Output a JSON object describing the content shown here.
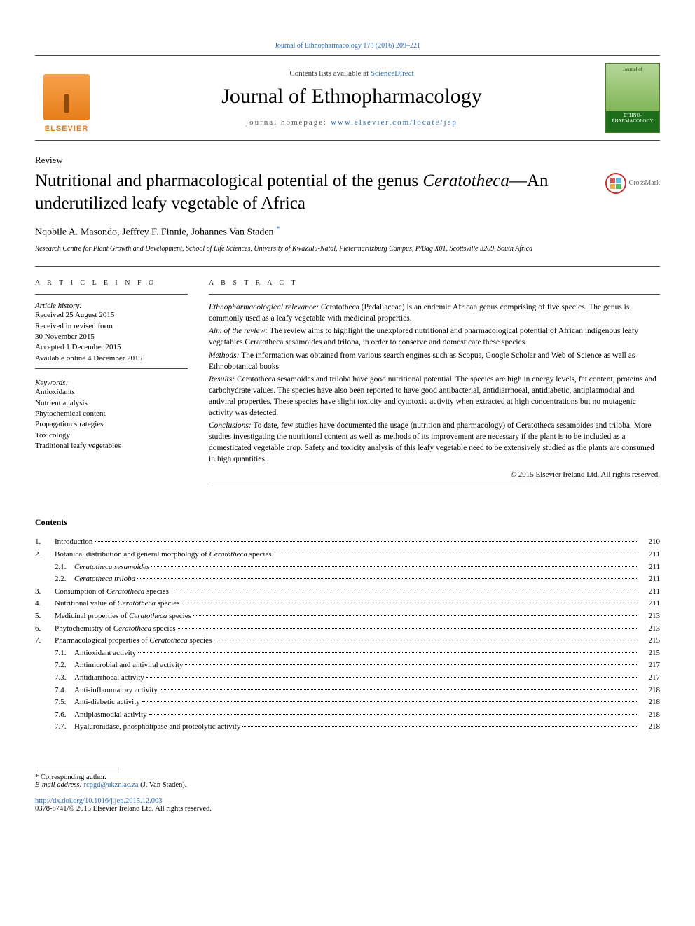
{
  "running_header": {
    "journal_link_text": "Journal of Ethnopharmacology 178 (2016) 209–221",
    "journal_link_color": "#2a6bb8"
  },
  "masthead": {
    "publisher_name": "ELSEVIER",
    "publisher_color": "#e67d1a",
    "contents_prefix": "Contents lists available at ",
    "contents_link": "ScienceDirect",
    "journal_title": "Journal of Ethnopharmacology",
    "homepage_prefix": "journal homepage: ",
    "homepage_link": "www.elsevier.com/locate/jep",
    "cover_top": "Journal of",
    "cover_bottom": "ETHNO-\nPHARMACOLOGY"
  },
  "article": {
    "type": "Review",
    "title_pre": "Nutritional and pharmacological potential of the genus ",
    "title_ital": "Ceratotheca",
    "title_post": "—An underutilized leafy vegetable of Africa",
    "crossmark_label": "CrossMark",
    "authors_text": "Nqobile A. Masondo, Jeffrey F. Finnie, Johannes Van Staden",
    "corr_symbol": "*",
    "affiliation": "Research Centre for Plant Growth and Development, School of Life Sciences, University of KwaZulu-Natal, Pietermaritzburg Campus, P/Bag X01, Scottsville 3209, South Africa"
  },
  "article_info": {
    "heading": "a r t i c l e  i n f o",
    "history_label": "Article history:",
    "history": [
      "Received 25 August 2015",
      "Received in revised form",
      "30 November 2015",
      "Accepted 1 December 2015",
      "Available online 4 December 2015"
    ],
    "keywords_label": "Keywords:",
    "keywords": [
      "Antioxidants",
      "Nutrient analysis",
      "Phytochemical content",
      "Propagation strategies",
      "Toxicology",
      "Traditional leafy vegetables"
    ]
  },
  "abstract": {
    "heading": "a b s t r a c t",
    "sections": [
      {
        "label": "Ethnopharmacological relevance:",
        "text": " Ceratotheca (Pedaliaceae) is an endemic African genus comprising of five species. The genus is commonly used as a leafy vegetable with medicinal properties."
      },
      {
        "label": "Aim of the review:",
        "text": " The review aims to highlight the unexplored nutritional and pharmacological potential of African indigenous leafy vegetables Ceratotheca sesamoides and triloba, in order to conserve and domesticate these species."
      },
      {
        "label": "Methods:",
        "text": " The information was obtained from various search engines such as Scopus, Google Scholar and Web of Science as well as Ethnobotanical books."
      },
      {
        "label": "Results:",
        "text": " Ceratotheca sesamoides and triloba have good nutritional potential. The species are high in energy levels, fat content, proteins and carbohydrate values. The species have also been reported to have good antibacterial, antidiarrhoeal, antidiabetic, antiplasmodial and antiviral properties. These species have slight toxicity and cytotoxic activity when extracted at high concentrations but no mutagenic activity was detected."
      },
      {
        "label": "Conclusions:",
        "text": " To date, few studies have documented the usage (nutrition and pharmacology) of Ceratotheca sesamoides and triloba. More studies investigating the nutritional content as well as methods of its improvement are necessary if the plant is to be included as a domesticated vegetable crop. Safety and toxicity analysis of this leafy vegetable need to be extensively studied as the plants are consumed in high quantities."
      }
    ],
    "copyright": "© 2015 Elsevier Ireland Ltd. All rights reserved."
  },
  "contents": {
    "heading": "Contents",
    "items": [
      {
        "num": "1.",
        "title": "Introduction",
        "page": "210",
        "level": 0
      },
      {
        "num": "2.",
        "title_pre": "Botanical distribution and general morphology of ",
        "title_ital": "Ceratotheca",
        "title_post": " species",
        "page": "211",
        "level": 0
      },
      {
        "num": "2.1.",
        "title_ital": "Ceratotheca sesamoides",
        "page": "211",
        "level": 1
      },
      {
        "num": "2.2.",
        "title_ital": "Ceratotheca triloba",
        "page": "211",
        "level": 1
      },
      {
        "num": "3.",
        "title_pre": "Consumption of ",
        "title_ital": "Ceratotheca",
        "title_post": " species",
        "page": "211",
        "level": 0
      },
      {
        "num": "4.",
        "title_pre": "Nutritional value of ",
        "title_ital": "Ceratotheca",
        "title_post": " species",
        "page": "211",
        "level": 0
      },
      {
        "num": "5.",
        "title_pre": "Medicinal properties of ",
        "title_ital": "Ceratotheca",
        "title_post": " species",
        "page": "213",
        "level": 0
      },
      {
        "num": "6.",
        "title_pre": "Phytochemistry of ",
        "title_ital": "Ceratotheca",
        "title_post": " species",
        "page": "213",
        "level": 0
      },
      {
        "num": "7.",
        "title_pre": "Pharmacological properties of ",
        "title_ital": "Ceratotheca",
        "title_post": " species",
        "page": "215",
        "level": 0
      },
      {
        "num": "7.1.",
        "title": "Antioxidant activity",
        "page": "215",
        "level": 1
      },
      {
        "num": "7.2.",
        "title": "Antimicrobial and antiviral activity",
        "page": "217",
        "level": 1
      },
      {
        "num": "7.3.",
        "title": "Antidiarrhoeal activity",
        "page": "217",
        "level": 1
      },
      {
        "num": "7.4.",
        "title": "Anti-inflammatory activity",
        "page": "218",
        "level": 1
      },
      {
        "num": "7.5.",
        "title": "Anti-diabetic activity",
        "page": "218",
        "level": 1
      },
      {
        "num": "7.6.",
        "title": "Antiplasmodial activity",
        "page": "218",
        "level": 1
      },
      {
        "num": "7.7.",
        "title": "Hyaluronidase, phospholipase and proteolytic activity",
        "page": "218",
        "level": 1
      }
    ]
  },
  "footer": {
    "corr_note": "* Corresponding author.",
    "email_label": "E-mail address: ",
    "email": "rcpgd@ukzn.ac.za",
    "email_suffix": " (J. Van Staden).",
    "doi": "http://dx.doi.org/10.1016/j.jep.2015.12.003",
    "issn_line": "0378-8741/© 2015 Elsevier Ireland Ltd. All rights reserved."
  },
  "colors": {
    "link": "#2a6bb8",
    "publisher": "#e67d1a",
    "text": "#000000",
    "rule": "#444444"
  },
  "typography": {
    "body_fontsize_pt": 11,
    "journal_title_pt": 30,
    "article_title_pt": 25,
    "authors_pt": 14,
    "abstract_pt": 11.5,
    "toc_pt": 11,
    "footer_pt": 10.5
  }
}
